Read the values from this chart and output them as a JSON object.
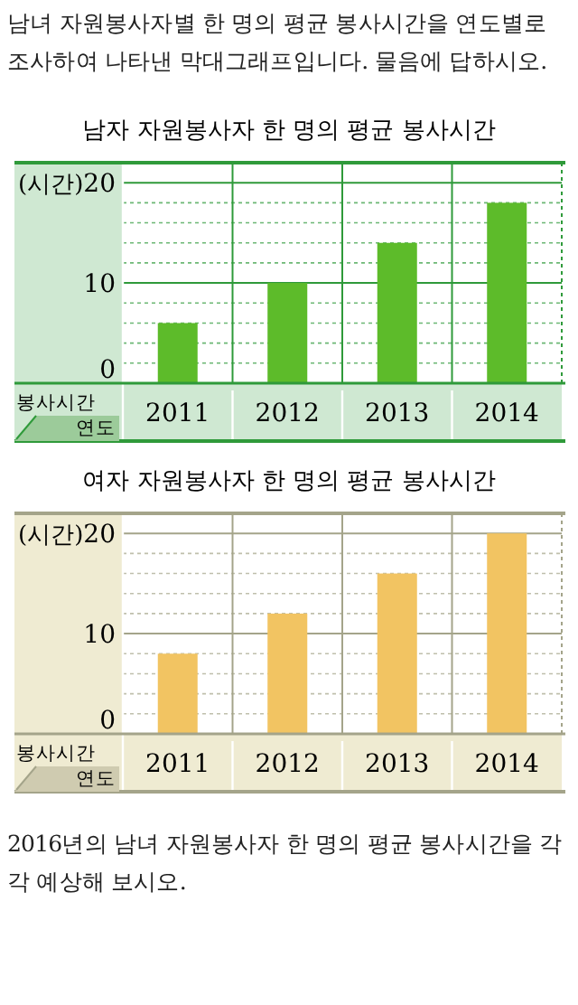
{
  "chart_data": [
    {
      "type": "bar",
      "title": "남자 자원봉사자 한 명의 평균 봉사시간",
      "ylabel": "(시간)",
      "xlabel": "연도",
      "annotations": [
        "봉사시간",
        "남녀 자원봉사자별 한 명의 평균 봉사시간을 연도별로 조사하여 나타낸 막대그래프입니다. 물음에 답하시오."
      ],
      "categories": [
        "2011",
        "2012",
        "2013",
        "2014"
      ],
      "values": [
        6,
        10,
        14,
        18
      ],
      "color": "#5dbb2a",
      "ylim": [
        0,
        22
      ],
      "yticks": [
        0,
        {
          "value": 2,
          "label": null
        },
        {
          "value": 4,
          "label": null
        },
        {
          "value": 6,
          "label": null
        },
        {
          "value": 8,
          "label": null
        },
        10,
        {
          "value": 12,
          "label": null
        },
        {
          "value": 14,
          "label": null
        },
        {
          "value": 16,
          "label": null
        },
        {
          "value": 18,
          "label": null
        },
        20
      ],
      "grid": true
    },
    {
      "type": "bar",
      "title": "여자 자원봉사자 한 명의 평균 봉사시간",
      "ylabel": "(시간)",
      "xlabel": "연도",
      "annotations": [
        "봉사시간",
        "2016년의 남녀 자원봉사자 한 명의 평균 봉사시간을 각각 예상해 보시오."
      ],
      "categories": [
        "2011",
        "2012",
        "2013",
        "2014"
      ],
      "values": [
        8,
        12,
        16,
        20
      ],
      "color": "#f2c462",
      "ylim": [
        0,
        22
      ],
      "yticks": [
        0,
        {
          "value": 2,
          "label": null
        },
        {
          "value": 4,
          "label": null
        },
        {
          "value": 6,
          "label": null
        },
        {
          "value": 8,
          "label": null
        },
        10,
        {
          "value": 12,
          "label": null
        },
        {
          "value": 14,
          "label": null
        },
        {
          "value": 16,
          "label": null
        },
        {
          "value": 18,
          "label": null
        },
        20
      ],
      "grid": true
    }
  ]
}
